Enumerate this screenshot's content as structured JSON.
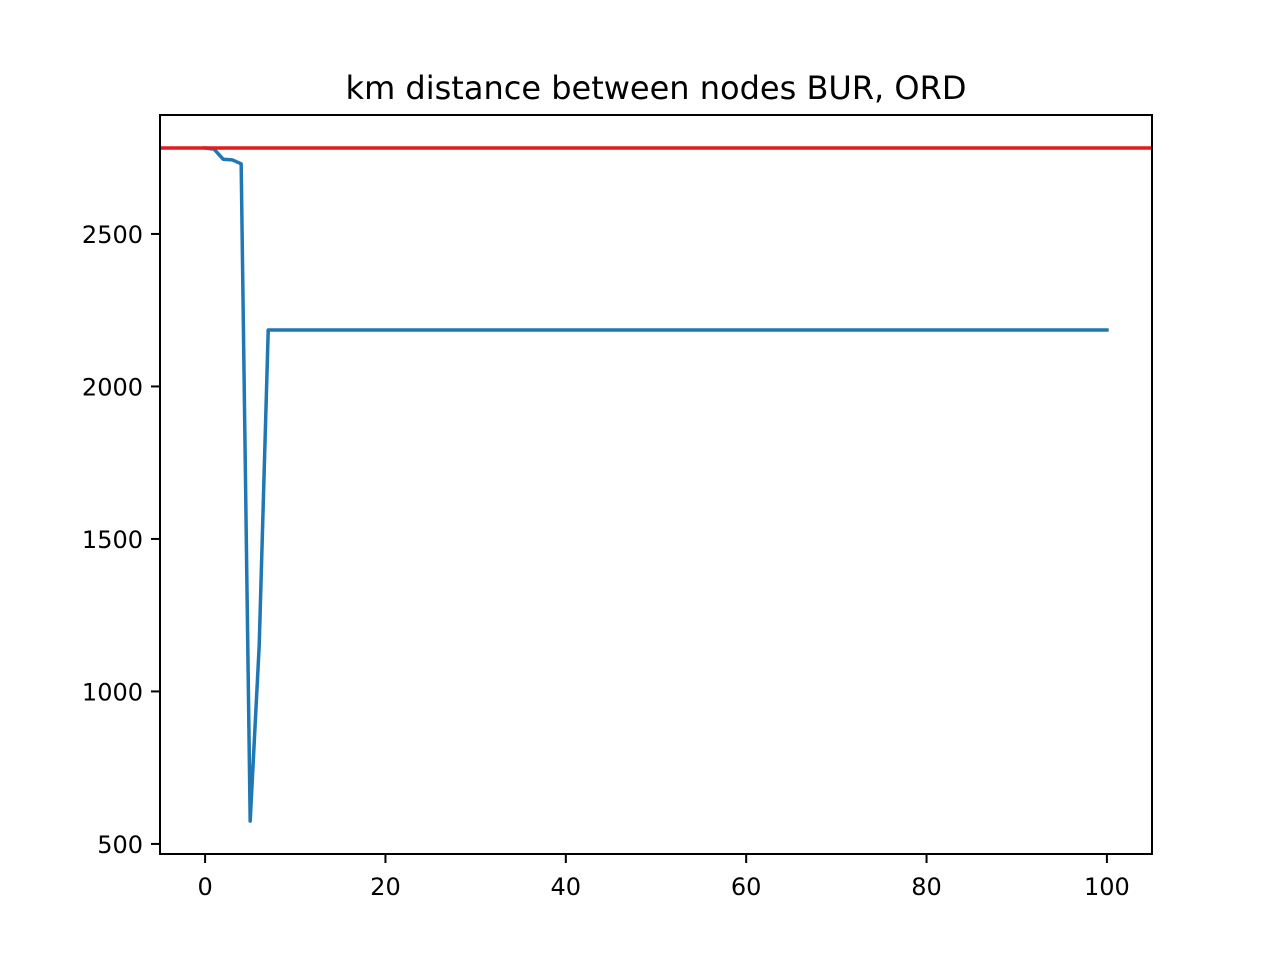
{
  "chart_data": {
    "type": "line",
    "title": "km distance between nodes BUR, ORD",
    "xlabel": "",
    "ylabel": "",
    "xlim": [
      -5,
      105
    ],
    "ylim": [
      467,
      2890
    ],
    "xticks": [
      0,
      20,
      40,
      60,
      80,
      100
    ],
    "yticks": [
      500,
      1000,
      1500,
      2000,
      2500
    ],
    "xtick_labels": [
      "0",
      "20",
      "40",
      "60",
      "80",
      "100"
    ],
    "ytick_labels": [
      "500",
      "1000",
      "1500",
      "2000",
      "2500"
    ],
    "grid": false,
    "legend": "none",
    "series": [
      {
        "color": "#1f77b4",
        "x": [
          0,
          1,
          2,
          3,
          4,
          5,
          6,
          7,
          8,
          9,
          10,
          15,
          20,
          30,
          40,
          50,
          60,
          70,
          80,
          90,
          100
        ],
        "y": [
          2782,
          2778,
          2745,
          2743,
          2730,
          575,
          1150,
          2185,
          2185,
          2185,
          2185,
          2185,
          2185,
          2185,
          2185,
          2185,
          2185,
          2185,
          2185,
          2185,
          2185
        ]
      }
    ],
    "hlines": [
      {
        "y": 2782,
        "color": "#e41a1c"
      }
    ]
  }
}
